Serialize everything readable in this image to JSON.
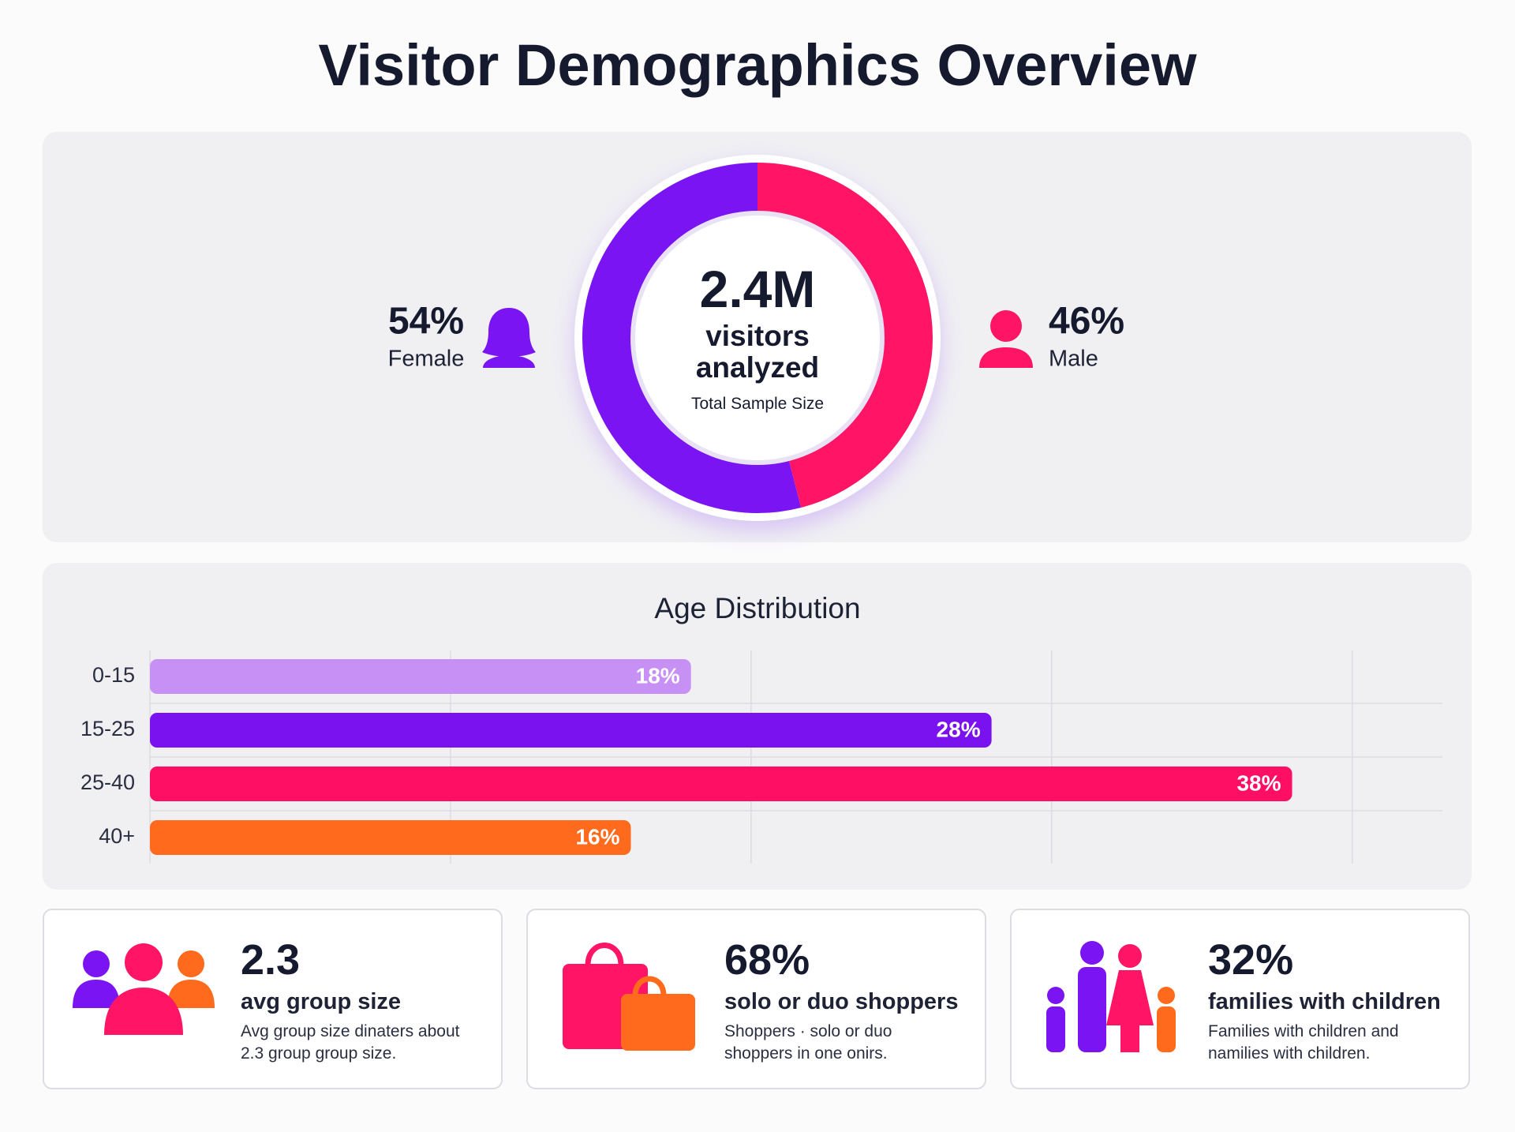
{
  "title": "Visitor Demographics Overview",
  "chart_data": [
    {
      "type": "donut",
      "center_value": "2.4M",
      "center_label": "visitors analyzed",
      "center_sublabel": "Total Sample Size",
      "categories": [
        "Female",
        "Male"
      ],
      "values": [
        54,
        46
      ],
      "value_labels": [
        "54%",
        "46%"
      ],
      "colors": [
        "#7a14f2",
        "#ff1466"
      ]
    },
    {
      "type": "bar",
      "orientation": "horizontal",
      "title": "Age Distribution",
      "categories": [
        "0-15",
        "15-25",
        "25-40",
        "40+"
      ],
      "values": [
        18,
        28,
        38,
        16
      ],
      "value_labels": [
        "18%",
        "28%",
        "38%",
        "16%"
      ],
      "colors": [
        "#c690f5",
        "#7a12f0",
        "#ff0f63",
        "#ff6a1c"
      ],
      "xlim": [
        0,
        43
      ],
      "xticks": [
        0,
        10,
        20,
        30,
        40
      ],
      "grid": true
    }
  ],
  "cards": [
    {
      "value": "2.3",
      "label": "avg group size",
      "description": "Avg group size dinaters about 2.3 group group size."
    },
    {
      "value": "68%",
      "label": "solo or duo shoppers",
      "description": "Shoppers · solo or duo shoppers in one onirs."
    },
    {
      "value": "32%",
      "label": "families with children",
      "description": "Families with children and namilies with children."
    }
  ]
}
